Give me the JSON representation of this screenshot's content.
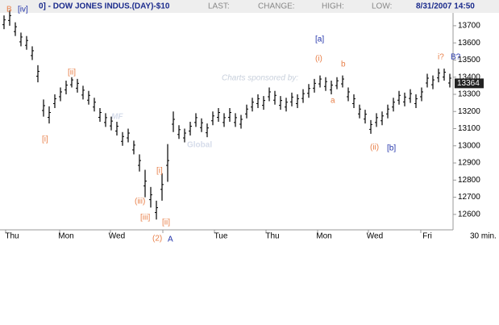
{
  "chart_data": {
    "type": "ohlc",
    "header": {
      "title": "0] - DOW JONES INDUS.(DAY)-$10",
      "fields": [
        "LAST:",
        "CHANGE:",
        "HIGH:",
        "LOW:"
      ],
      "timestamp": "8/31/2007 14:50"
    },
    "categories": [
      "Thu",
      "Mon",
      "Wed",
      null,
      "Tue",
      "Thu",
      "Mon",
      "Wed",
      "Fri"
    ],
    "interval": "30 min.",
    "ylim": [
      12510,
      13850
    ],
    "yticks": [
      12600,
      12700,
      12800,
      12900,
      13000,
      13100,
      13200,
      13300,
      13400,
      13500,
      13600,
      13700
    ],
    "last_price": 13364,
    "color": "#000000",
    "watermark": {
      "sponsor": "Charts sponsored by:",
      "brand_a": "MF",
      "brand_b": "Global"
    },
    "annotations": [
      "B",
      "[iv]",
      "[ii]",
      "[i]",
      "[i]",
      "(iii)",
      "[iii]",
      "[ii]",
      "(2)",
      "A",
      "[a]",
      "(i)",
      "b",
      "a",
      "(ii)",
      "[b]",
      "i?",
      "B?"
    ],
    "high": [
      13760,
      13790,
      13720,
      13660,
      13640,
      13580,
      13470,
      13270,
      13230,
      13300,
      13340,
      13380,
      13400,
      13390,
      13350,
      13320,
      13280,
      13220,
      13190,
      13170,
      13140,
      13080,
      13100,
      13030,
      12950,
      12860,
      12760,
      12680,
      12840,
      13010,
      13200,
      13120,
      13100,
      13140,
      13190,
      13160,
      13130,
      13200,
      13220,
      13190,
      13220,
      13190,
      13180,
      13240,
      13280,
      13300,
      13290,
      13340,
      13320,
      13290,
      13280,
      13310,
      13300,
      13330,
      13360,
      13390,
      13410,
      13400,
      13380,
      13400,
      13410,
      13340,
      13300,
      13240,
      13210,
      13150,
      13190,
      13200,
      13240,
      13280,
      13320,
      13310,
      13330,
      13300,
      13340,
      13420,
      13410,
      13450,
      13450,
      13420
    ],
    "low": [
      13680,
      13700,
      13640,
      13580,
      13560,
      13500,
      13370,
      13170,
      13130,
      13220,
      13260,
      13300,
      13340,
      13310,
      13270,
      13240,
      13200,
      13140,
      13110,
      13090,
      13060,
      13000,
      13020,
      12950,
      12850,
      12700,
      12640,
      12570,
      12680,
      12790,
      13080,
      13040,
      13020,
      13060,
      13110,
      13080,
      13050,
      13120,
      13140,
      13110,
      13140,
      13110,
      13100,
      13160,
      13200,
      13220,
      13210,
      13260,
      13240,
      13210,
      13200,
      13230,
      13220,
      13250,
      13280,
      13310,
      13340,
      13320,
      13300,
      13330,
      13340,
      13260,
      13220,
      13160,
      13130,
      13070,
      13110,
      13120,
      13160,
      13200,
      13240,
      13230,
      13250,
      13220,
      13260,
      13340,
      13330,
      13370,
      13380,
      13340
    ]
  }
}
